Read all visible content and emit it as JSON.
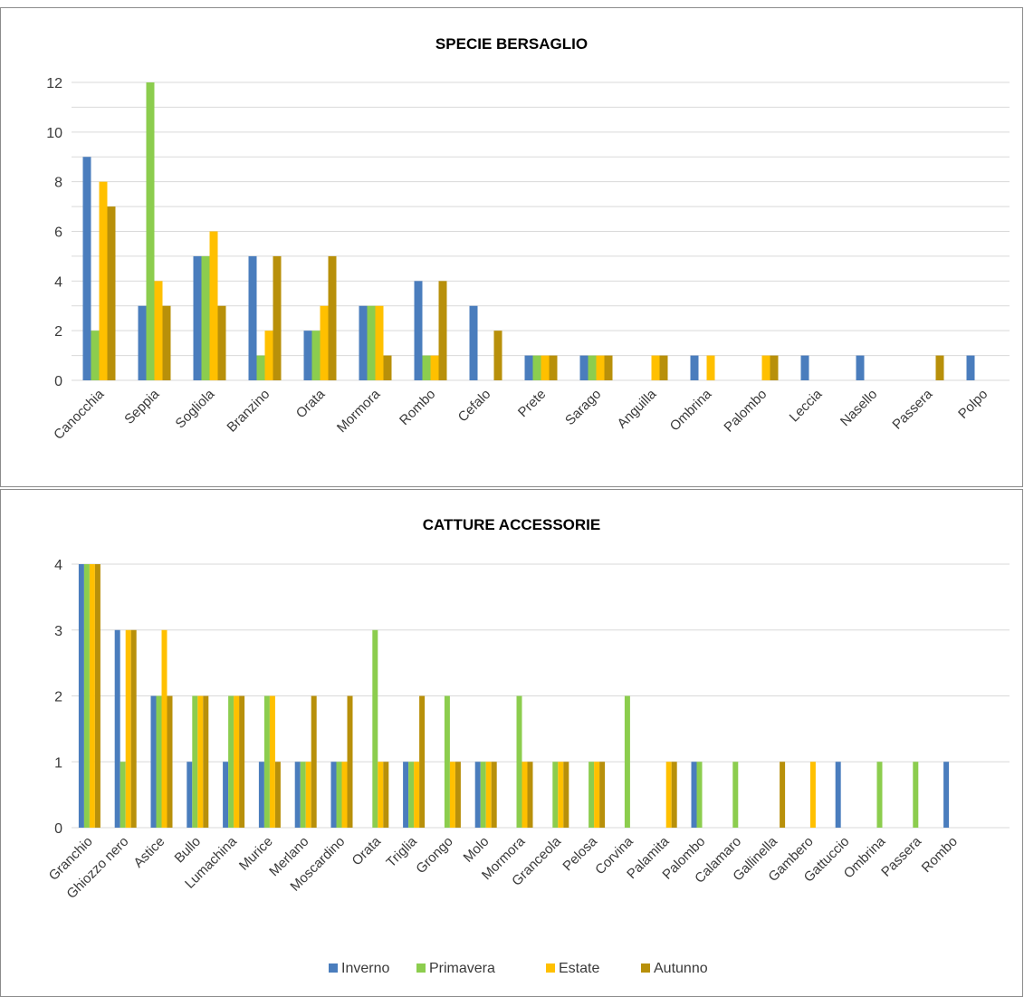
{
  "colors": {
    "Inverno": "#4a7dbd",
    "Primavera": "#8ccd4e",
    "Estate": "#ffc000",
    "Autunno": "#b8900a",
    "grid": "#d9d9d9"
  },
  "legend": [
    "Inverno",
    "Primavera",
    "Estate",
    "Autunno"
  ],
  "chart_data": [
    {
      "type": "bar",
      "title": "SPECIE BERSAGLIO",
      "categories": [
        "Canocchia",
        "Seppia",
        "Sogliola",
        "Branzino",
        "Orata",
        "Mormora",
        "Rombo",
        "Cefalo",
        "Prete",
        "Sarago",
        "Anguilla",
        "Ombrina",
        "Palombo",
        "Leccia",
        "Nasello",
        "Passera",
        "Polpo"
      ],
      "ylim": [
        0,
        12
      ],
      "yticks": [
        0,
        2,
        4,
        6,
        8,
        10,
        12
      ],
      "minor_grid": true,
      "series": [
        {
          "name": "Inverno",
          "values": [
            9,
            3,
            5,
            5,
            2,
            3,
            4,
            3,
            1,
            1,
            0,
            1,
            0,
            1,
            1,
            0,
            1
          ]
        },
        {
          "name": "Primavera",
          "values": [
            2,
            12,
            5,
            1,
            2,
            3,
            1,
            0,
            1,
            1,
            0,
            0,
            0,
            0,
            0,
            0,
            0
          ]
        },
        {
          "name": "Estate",
          "values": [
            8,
            4,
            6,
            2,
            3,
            3,
            1,
            0,
            1,
            1,
            1,
            1,
            1,
            0,
            0,
            0,
            0
          ]
        },
        {
          "name": "Autunno",
          "values": [
            7,
            3,
            3,
            5,
            5,
            1,
            4,
            2,
            1,
            1,
            1,
            0,
            1,
            0,
            0,
            1,
            0
          ]
        }
      ]
    },
    {
      "type": "bar",
      "title": "CATTURE ACCESSORIE",
      "categories": [
        "Granchio",
        "Ghiozzo nero",
        "Astice",
        "Bullo",
        "Lumachina",
        "Murice",
        "Merlano",
        "Moscardino",
        "Orata",
        "Triglia",
        "Grongo",
        "Molo",
        "Mormora",
        "Granceola",
        "Pelosa",
        "Corvina",
        "Palamita",
        "Palombo",
        "Calamaro",
        "Gallinella",
        "Gambero",
        "Gattuccio",
        "Ombrina",
        "Passera",
        "Rombo"
      ],
      "ylim": [
        0,
        4
      ],
      "yticks": [
        0,
        1,
        2,
        3,
        4
      ],
      "minor_grid": false,
      "legend_position": "bottom",
      "series": [
        {
          "name": "Inverno",
          "values": [
            4,
            3,
            2,
            1,
            1,
            1,
            1,
            1,
            0,
            1,
            0,
            1,
            0,
            0,
            0,
            0,
            0,
            1,
            0,
            0,
            0,
            1,
            0,
            0,
            1
          ]
        },
        {
          "name": "Primavera",
          "values": [
            4,
            1,
            2,
            2,
            2,
            2,
            1,
            1,
            3,
            1,
            2,
            1,
            2,
            1,
            1,
            2,
            0,
            1,
            1,
            0,
            0,
            0,
            1,
            1,
            0
          ]
        },
        {
          "name": "Estate",
          "values": [
            4,
            3,
            3,
            2,
            2,
            2,
            1,
            1,
            1,
            1,
            1,
            1,
            1,
            1,
            1,
            0,
            1,
            0,
            0,
            0,
            1,
            0,
            0,
            0,
            0
          ]
        },
        {
          "name": "Autunno",
          "values": [
            4,
            3,
            2,
            2,
            2,
            1,
            2,
            2,
            1,
            2,
            1,
            1,
            1,
            1,
            1,
            0,
            1,
            0,
            0,
            1,
            0,
            0,
            0,
            0,
            0
          ]
        }
      ]
    }
  ]
}
